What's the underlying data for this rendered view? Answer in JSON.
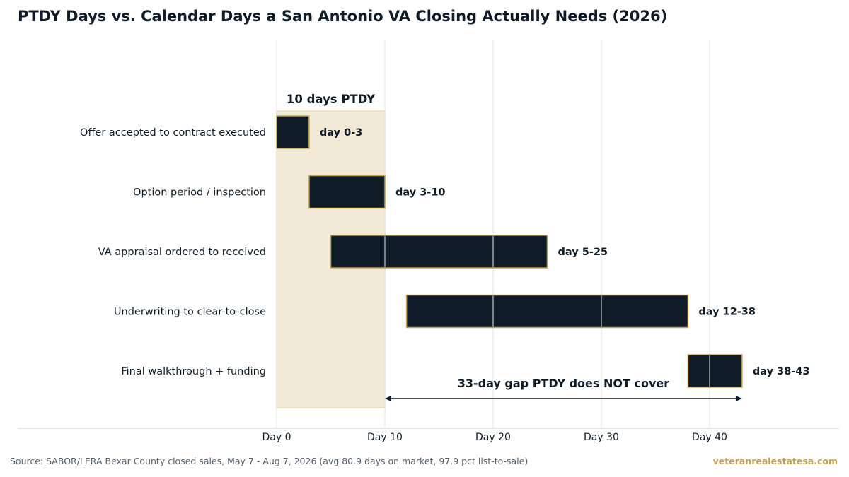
{
  "title": "PTDY Days vs. Calendar Days a San Antonio VA Closing Actually Needs (2026)",
  "source": "Source: SABOR/LERA Bexar County closed sales, May 7 - Aug 7, 2026 (avg 80.9 days on market, 97.9 pct list-to-sale)",
  "brand": "veteranrealestatesa.com",
  "colors": {
    "bar_fill": "#0f1c28",
    "bar_edge": "#c4a252",
    "ptdy_fill": "#f3e9d7",
    "ptdy_edge": "#ecdcb8",
    "text": "#0f1c28",
    "grid": "#e3e3e3",
    "axis": "#cccccc",
    "brand": "#c4a252"
  },
  "chart_data": {
    "type": "gantt",
    "xlim": [
      0,
      52
    ],
    "xticks": [
      0,
      10,
      20,
      30,
      40
    ],
    "xtick_labels": [
      "Day 0",
      "Day 10",
      "Day 20",
      "Day 30",
      "Day 40"
    ],
    "grid": "vertical",
    "tasks": [
      {
        "label": "Offer accepted to contract executed",
        "start": 0,
        "end": 3,
        "bar_label": "day 0-3"
      },
      {
        "label": "Option period / inspection",
        "start": 3,
        "end": 10,
        "bar_label": "day 3-10"
      },
      {
        "label": "VA appraisal ordered to received",
        "start": 5,
        "end": 25,
        "bar_label": "day 5-25"
      },
      {
        "label": "Underwriting to clear-to-close",
        "start": 12,
        "end": 38,
        "bar_label": "day 12-38"
      },
      {
        "label": "Final walkthrough + funding",
        "start": 38,
        "end": 43,
        "bar_label": "day 38-43"
      }
    ],
    "ptdy_window": {
      "start": 0,
      "end": 10,
      "label": "10 days PTDY"
    },
    "gap_annotation": {
      "start": 10,
      "end": 43,
      "label": "33-day gap PTDY does NOT cover"
    }
  }
}
